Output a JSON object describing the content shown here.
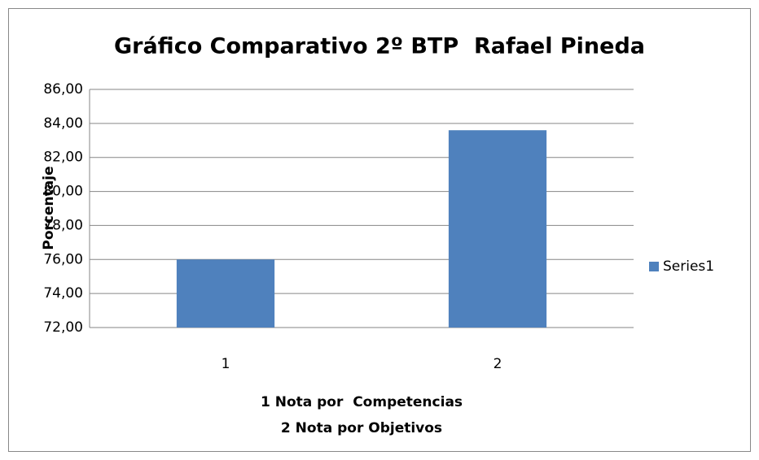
{
  "chart_data": {
    "type": "bar",
    "title": "Gráfico Comparativo 2º BTP  Rafael Pineda",
    "ylabel": "Porcentaje",
    "xlabel": [
      "1 Nota por  Competencias",
      "2 Nota por Objetivos"
    ],
    "categories": [
      "1",
      "2"
    ],
    "series": [
      {
        "name": "Series1",
        "color": "#4f81bd",
        "values": [
          76.0,
          83.6
        ]
      }
    ],
    "ylim": [
      72,
      86
    ],
    "yticks": [
      {
        "value": 72,
        "label": "72,00"
      },
      {
        "value": 74,
        "label": "74,00"
      },
      {
        "value": 76,
        "label": "76,00"
      },
      {
        "value": 78,
        "label": "78,00"
      },
      {
        "value": 80,
        "label": "80,00"
      },
      {
        "value": 82,
        "label": "82,00"
      },
      {
        "value": 84,
        "label": "84,00"
      },
      {
        "value": 86,
        "label": "86,00"
      }
    ],
    "grid": true,
    "legend": "right"
  }
}
